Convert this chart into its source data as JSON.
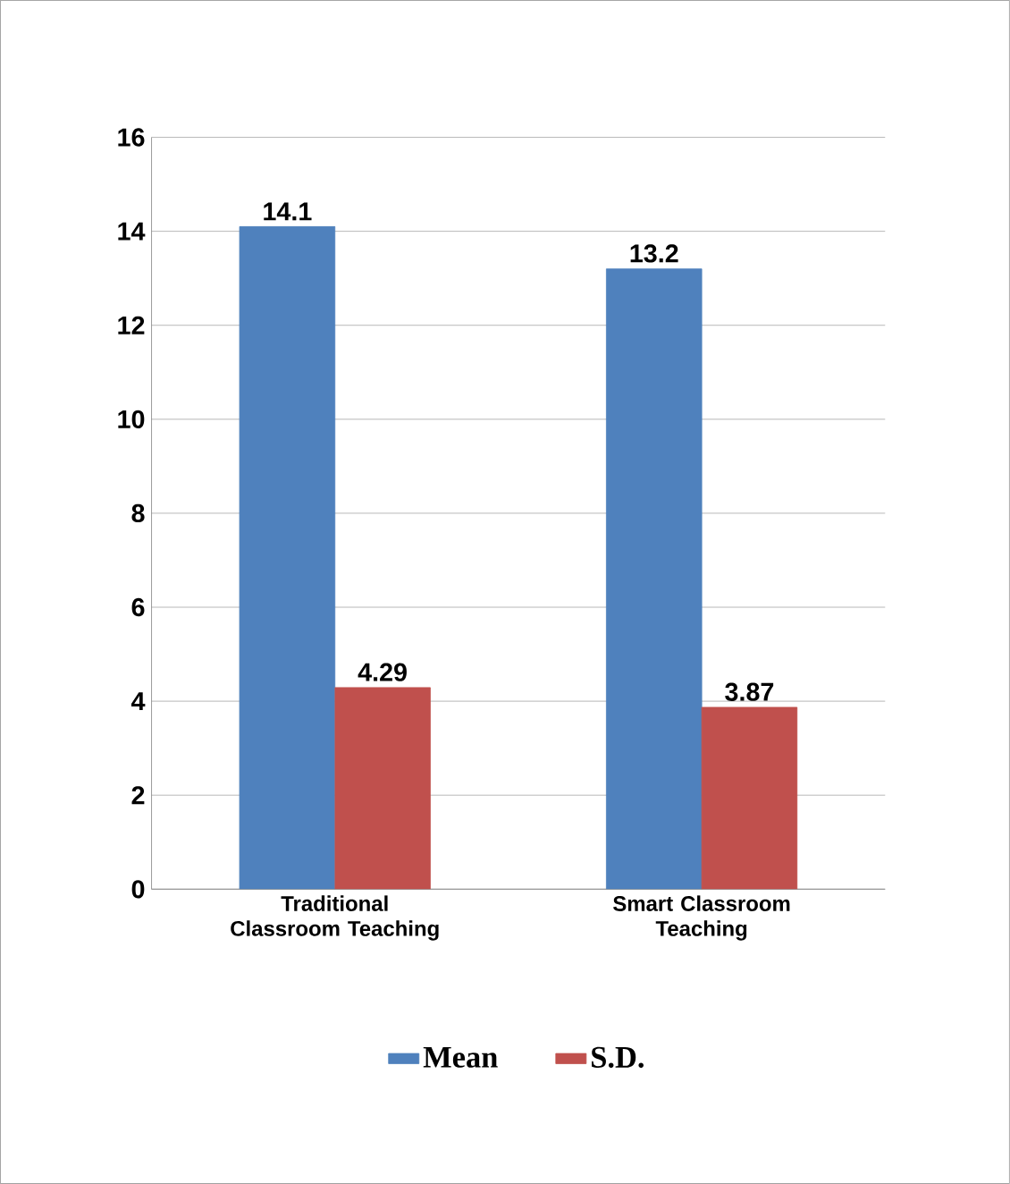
{
  "chart_data": {
    "type": "bar",
    "categories": [
      "Traditional Classroom Teaching",
      "Smart Classroom Teaching"
    ],
    "series": [
      {
        "name": "Mean",
        "color": "#4f81bd",
        "values": [
          14.1,
          13.2
        ]
      },
      {
        "name": "S.D.",
        "color": "#c0504d",
        "values": [
          4.29,
          3.87
        ]
      }
    ],
    "ylim": [
      0,
      16
    ],
    "yticks": [
      0,
      2,
      4,
      6,
      8,
      10,
      12,
      14,
      16
    ],
    "grid": "y",
    "legend": "bottom",
    "data_labels": true
  }
}
